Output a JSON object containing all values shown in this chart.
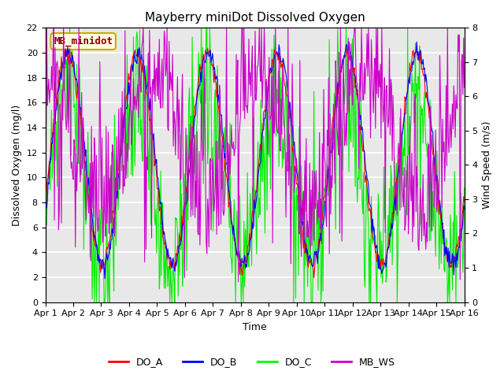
{
  "title": "Mayberry miniDot Dissolved Oxygen",
  "xlabel": "Time",
  "ylabel_left": "Dissolved Oxygen (mg/l)",
  "ylabel_right": "Wind Speed (m/s)",
  "text_annotation": "MB_minidot",
  "ylim_left": [
    0,
    22
  ],
  "ylim_right": [
    0.0,
    8.0
  ],
  "yticks_left": [
    0,
    2,
    4,
    6,
    8,
    10,
    12,
    14,
    16,
    18,
    20,
    22
  ],
  "yticks_right": [
    0.0,
    1.0,
    2.0,
    3.0,
    4.0,
    5.0,
    6.0,
    7.0,
    8.0
  ],
  "xtick_labels": [
    "Apr 1",
    "Apr 2",
    "Apr 3",
    "Apr 4",
    "Apr 5",
    "Apr 6",
    "Apr 7",
    "Apr 8",
    "Apr 9",
    "Apr 10",
    "Apr 11",
    "Apr 12",
    "Apr 13",
    "Apr 14",
    "Apr 15",
    "Apr 16"
  ],
  "legend_entries": [
    "DO_A",
    "DO_B",
    "DO_C",
    "MB_WS"
  ],
  "line_colors": [
    "red",
    "blue",
    "#00ee00",
    "#cc00cc"
  ],
  "background_color": "#ffffff",
  "plot_bg_color": "#e8e8e8",
  "grid_color": "#ffffff",
  "title_fontsize": 11,
  "axis_label_fontsize": 9,
  "tick_fontsize": 8,
  "legend_fontsize": 9,
  "annotation_fontsize": 9,
  "figwidth": 6.4,
  "figheight": 4.8,
  "dpi": 100
}
